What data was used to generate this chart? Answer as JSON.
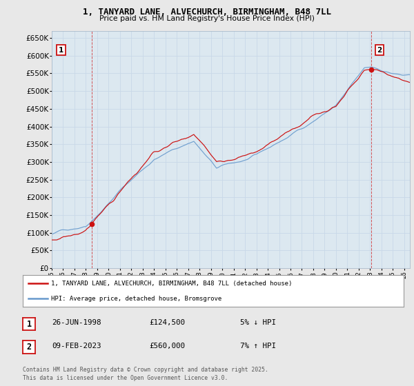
{
  "title_line1": "1, TANYARD LANE, ALVECHURCH, BIRMINGHAM, B48 7LL",
  "title_line2": "Price paid vs. HM Land Registry's House Price Index (HPI)",
  "ylim": [
    0,
    670000
  ],
  "yticks": [
    0,
    50000,
    100000,
    150000,
    200000,
    250000,
    300000,
    350000,
    400000,
    450000,
    500000,
    550000,
    600000,
    650000
  ],
  "xlim_start": 1995.0,
  "xlim_end": 2026.5,
  "grid_color": "#c8d8e8",
  "background_color": "#e8e8e8",
  "plot_bg_color": "#dce8f0",
  "hpi_color": "#6699cc",
  "price_color": "#cc1111",
  "transaction1": {
    "date_num": 1998.49,
    "price": 124500,
    "label": "1",
    "pct": "5% ↓ HPI",
    "date_str": "26-JUN-1998"
  },
  "transaction2": {
    "date_num": 2023.1,
    "price": 560000,
    "label": "2",
    "pct": "7% ↑ HPI",
    "date_str": "09-FEB-2023"
  },
  "legend_label_price": "1, TANYARD LANE, ALVECHURCH, BIRMINGHAM, B48 7LL (detached house)",
  "legend_label_hpi": "HPI: Average price, detached house, Bromsgrove",
  "footnote": "Contains HM Land Registry data © Crown copyright and database right 2025.\nThis data is licensed under the Open Government Licence v3.0.",
  "table_rows": [
    {
      "num": "1",
      "date": "26-JUN-1998",
      "price": "£124,500",
      "pct": "5% ↓ HPI"
    },
    {
      "num": "2",
      "date": "09-FEB-2023",
      "price": "£560,000",
      "pct": "7% ↑ HPI"
    }
  ],
  "xtick_years": [
    1995,
    1996,
    1997,
    1998,
    1999,
    2000,
    2001,
    2002,
    2003,
    2004,
    2005,
    2006,
    2007,
    2008,
    2009,
    2010,
    2011,
    2012,
    2013,
    2014,
    2015,
    2016,
    2017,
    2018,
    2019,
    2020,
    2021,
    2022,
    2023,
    2024,
    2025,
    2026
  ]
}
